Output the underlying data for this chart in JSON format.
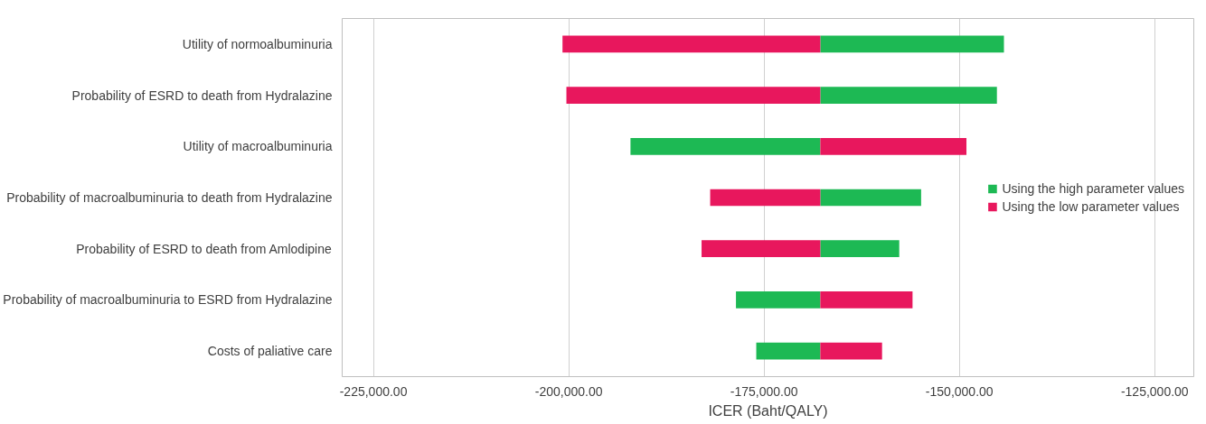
{
  "chart_data": {
    "type": "bar",
    "orientation": "horizontal",
    "xlabel": "ICER (Baht/QALY)",
    "categories": [
      "Utility of normoalbuminuria",
      "Probability of ESRD to death from Hydralazine",
      "Utility of macroalbuminuria",
      "Probability of macroalbuminuria to death from Hydralazine",
      "Probability of ESRD to death from Amlodipine",
      "Probability of macroalbuminuria to ESRD from Hydralazine",
      "Costs of paliative care"
    ],
    "series": [
      {
        "name": "Using the high parameter values",
        "color": "#1db954",
        "base": [
          -167800,
          -167800,
          -167800,
          -167800,
          -167800,
          -167800,
          -167800
        ],
        "values": [
          23500,
          22600,
          -24300,
          12900,
          10100,
          -10800,
          -8200
        ]
      },
      {
        "name": "Using the low parameter values",
        "color": "#e8175d",
        "base": [
          -167800,
          -167800,
          -167800,
          -167800,
          -167800,
          -167800,
          -167800
        ],
        "values": [
          -33000,
          -32500,
          18700,
          -14100,
          -15200,
          11800,
          7900
        ]
      }
    ],
    "xlim": [
      -229000,
      -120000
    ],
    "xticks": [
      {
        "value": -225000,
        "label": "-225,000.00"
      },
      {
        "value": -200000,
        "label": "-200,000.00"
      },
      {
        "value": -175000,
        "label": "-175,000.00"
      },
      {
        "value": -150000,
        "label": "-150,000.00"
      },
      {
        "value": -125000,
        "label": "-125,000.00"
      }
    ],
    "grid": "x",
    "legend": "right"
  }
}
